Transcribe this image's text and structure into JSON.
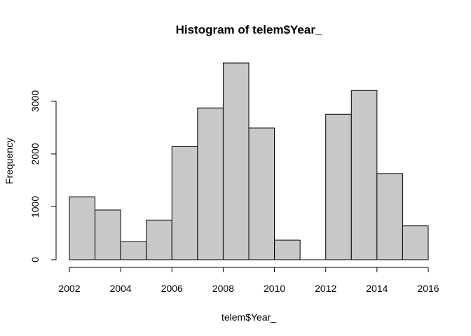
{
  "chart_data": {
    "type": "bar",
    "title": "Histogram of telem$Year_",
    "xlabel": "telem$Year_",
    "ylabel": "Frequency",
    "bins": [
      {
        "start": 2002,
        "end": 2003,
        "value": 1190
      },
      {
        "start": 2003,
        "end": 2004,
        "value": 940
      },
      {
        "start": 2004,
        "end": 2005,
        "value": 340
      },
      {
        "start": 2005,
        "end": 2006,
        "value": 750
      },
      {
        "start": 2006,
        "end": 2007,
        "value": 2140
      },
      {
        "start": 2007,
        "end": 2008,
        "value": 2870
      },
      {
        "start": 2008,
        "end": 2009,
        "value": 3720
      },
      {
        "start": 2009,
        "end": 2010,
        "value": 2490
      },
      {
        "start": 2010,
        "end": 2011,
        "value": 370
      },
      {
        "start": 2011,
        "end": 2012,
        "value": 0
      },
      {
        "start": 2012,
        "end": 2013,
        "value": 2750
      },
      {
        "start": 2013,
        "end": 2014,
        "value": 3200
      },
      {
        "start": 2014,
        "end": 2015,
        "value": 1630
      },
      {
        "start": 2015,
        "end": 2016,
        "value": 640
      }
    ],
    "x_ticks": [
      2002,
      2004,
      2006,
      2008,
      2010,
      2012,
      2014,
      2016
    ],
    "y_ticks": [
      0,
      1000,
      2000,
      3000
    ],
    "xlim": [
      2002,
      2016
    ],
    "ylim": [
      0,
      3720
    ],
    "bar_color": "#c8c8c8",
    "grid": false,
    "legend": "none"
  }
}
